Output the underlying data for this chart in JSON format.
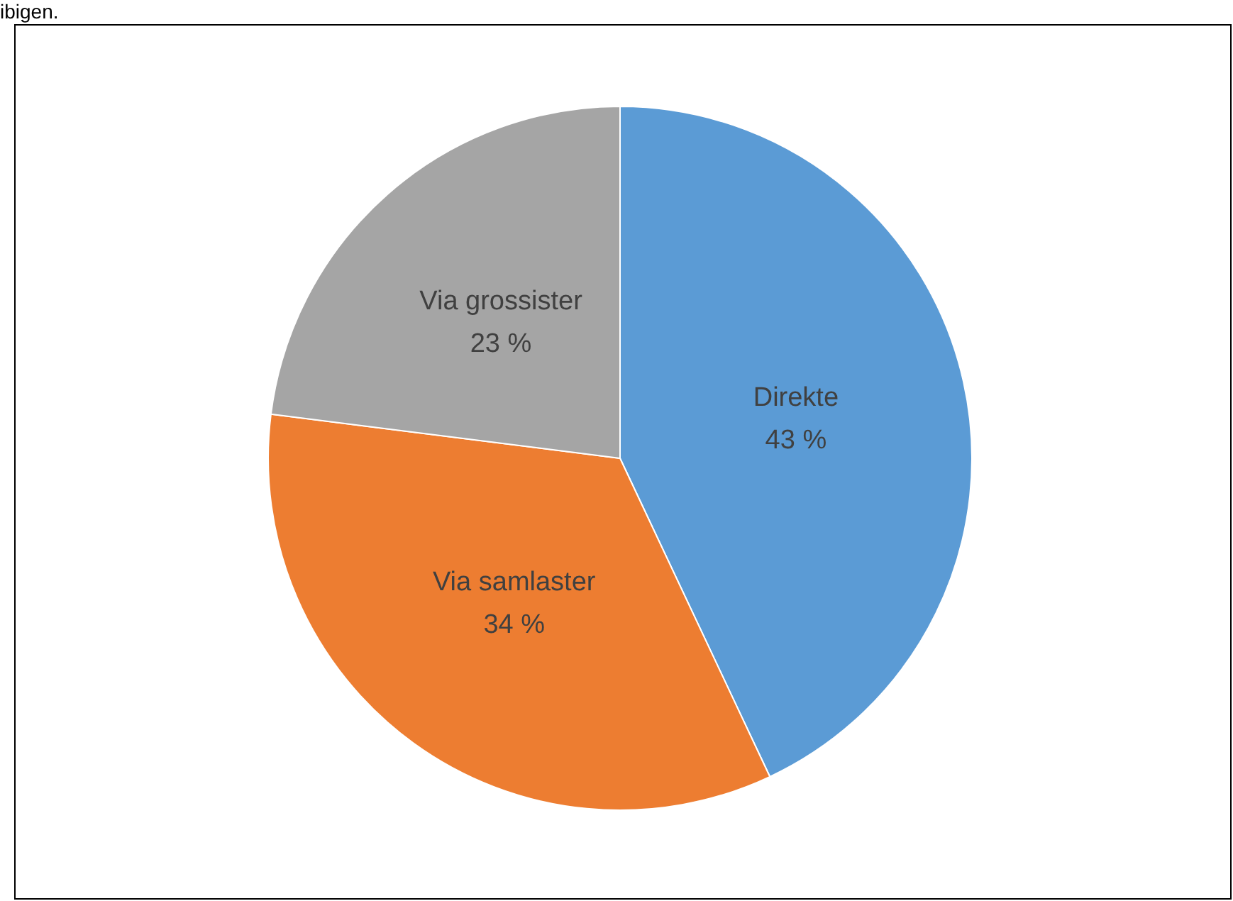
{
  "chart_data": {
    "type": "pie",
    "categories": [
      "Direkte",
      "Via samlaster",
      "Via grossister"
    ],
    "values": [
      43,
      34,
      23
    ],
    "value_labels": [
      "43 %",
      "34 %",
      "23 %"
    ],
    "colors": [
      "#5b9bd5",
      "#ed7d31",
      "#a5a5a5"
    ],
    "annotations": [
      "ibigen."
    ],
    "legend": false
  }
}
